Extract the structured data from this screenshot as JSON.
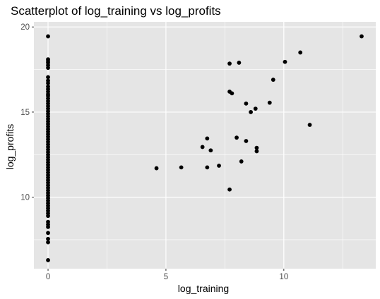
{
  "chart_data": {
    "type": "scatter",
    "title": "Scatterplot of log_training vs log_profits",
    "xlabel": "log_training",
    "ylabel": "log_profits",
    "xlim": [
      -0.6,
      13.9
    ],
    "ylim": [
      5.8,
      20.3
    ],
    "x_ticks": [
      0,
      5,
      10
    ],
    "x_tick_labels": [
      "0",
      "5",
      "10"
    ],
    "y_ticks": [
      10,
      15,
      20
    ],
    "y_tick_labels": [
      "10",
      "15",
      "20"
    ],
    "x_minor": [
      2.5,
      7.5,
      12.5
    ],
    "y_minor": [
      7.5,
      12.5,
      17.5
    ],
    "grid": true,
    "legend": "none",
    "colors": {
      "panel_background": "#e5e5e5",
      "grid": "#ffffff",
      "point": "#000000",
      "tick_text": "#4d4d4d",
      "tick_mark": "#333333"
    },
    "zero_training_log_profits": [
      19.45,
      18.1,
      18.0,
      17.9,
      17.75,
      17.6,
      17.05,
      16.85,
      16.7,
      16.5,
      16.35,
      16.2,
      16.05,
      15.95,
      15.8,
      15.65,
      15.5,
      15.35,
      15.2,
      15.05,
      14.9,
      14.75,
      14.6,
      14.45,
      14.3,
      14.15,
      14.0,
      13.85,
      13.7,
      13.55,
      13.4,
      13.25,
      13.1,
      12.95,
      12.8,
      12.65,
      12.5,
      12.35,
      12.2,
      12.05,
      11.9,
      11.75,
      11.6,
      11.45,
      11.3,
      11.15,
      11.0,
      10.85,
      10.7,
      10.55,
      10.4,
      10.25,
      10.1,
      9.95,
      9.8,
      9.65,
      9.5,
      9.35,
      9.2,
      9.05,
      8.9,
      8.55,
      8.4,
      8.25,
      7.9,
      7.55,
      7.35,
      6.3
    ],
    "nonzero_points": [
      {
        "x": 4.6,
        "y": 11.7
      },
      {
        "x": 5.65,
        "y": 11.75
      },
      {
        "x": 6.55,
        "y": 12.95
      },
      {
        "x": 6.75,
        "y": 13.45
      },
      {
        "x": 6.75,
        "y": 11.75
      },
      {
        "x": 6.9,
        "y": 12.75
      },
      {
        "x": 7.25,
        "y": 11.85
      },
      {
        "x": 7.7,
        "y": 17.85
      },
      {
        "x": 7.7,
        "y": 16.2
      },
      {
        "x": 7.8,
        "y": 16.1
      },
      {
        "x": 7.7,
        "y": 10.45
      },
      {
        "x": 8.0,
        "y": 13.5
      },
      {
        "x": 8.1,
        "y": 17.9
      },
      {
        "x": 8.2,
        "y": 12.1
      },
      {
        "x": 8.4,
        "y": 15.5
      },
      {
        "x": 8.4,
        "y": 13.3
      },
      {
        "x": 8.6,
        "y": 15.0
      },
      {
        "x": 8.8,
        "y": 15.2
      },
      {
        "x": 8.85,
        "y": 12.9
      },
      {
        "x": 8.85,
        "y": 12.7
      },
      {
        "x": 9.4,
        "y": 15.55
      },
      {
        "x": 9.55,
        "y": 16.9
      },
      {
        "x": 10.05,
        "y": 17.95
      },
      {
        "x": 10.7,
        "y": 18.5
      },
      {
        "x": 11.1,
        "y": 14.25
      },
      {
        "x": 13.3,
        "y": 19.45
      }
    ]
  }
}
